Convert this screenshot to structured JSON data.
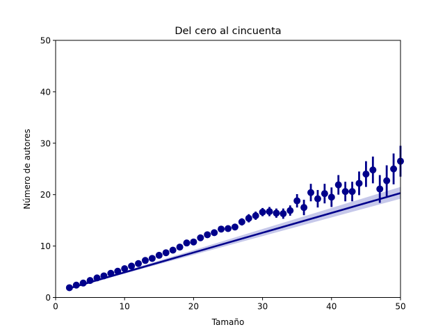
{
  "chart_data": {
    "type": "scatter",
    "title": "Del cero al cincuenta",
    "xlabel": "Tamaño",
    "ylabel": "Número de autores",
    "xlim": [
      0,
      50
    ],
    "ylim": [
      0,
      50
    ],
    "xticks": [
      "0",
      "10",
      "20",
      "30",
      "40",
      "50"
    ],
    "yticks": [
      "0",
      "10",
      "20",
      "30",
      "40",
      "50"
    ],
    "grid": false,
    "colors": {
      "points": "#00008b",
      "fit": "#00008b",
      "band": "#c6c8ea"
    },
    "series": [
      {
        "type": "scatter-errorbar",
        "x": [
          2,
          3,
          4,
          5,
          6,
          7,
          8,
          9,
          10,
          11,
          12,
          13,
          14,
          15,
          16,
          17,
          18,
          19,
          20,
          21,
          22,
          23,
          24,
          25,
          26,
          27,
          28,
          29,
          30,
          31,
          32,
          33,
          34,
          35,
          36,
          37,
          38,
          39,
          40,
          41,
          42,
          43,
          44,
          45,
          46,
          47,
          48,
          49,
          50
        ],
        "y": [
          1.9,
          2.4,
          2.8,
          3.3,
          3.8,
          4.2,
          4.7,
          5.1,
          5.6,
          6.1,
          6.6,
          7.2,
          7.6,
          8.2,
          8.7,
          9.2,
          9.8,
          10.6,
          10.8,
          11.6,
          12.2,
          12.6,
          13.3,
          13.4,
          13.7,
          14.7,
          15.4,
          15.9,
          16.6,
          16.7,
          16.4,
          16.3,
          16.9,
          18.8,
          17.5,
          20.4,
          19.2,
          20.2,
          19.5,
          21.9,
          20.6,
          20.6,
          22.2,
          24.0,
          24.8,
          21.1,
          22.7,
          25.0,
          26.5
        ],
        "yerr_low": [
          1.8,
          2.3,
          2.7,
          3.2,
          3.7,
          4.1,
          4.6,
          5.0,
          5.4,
          5.9,
          6.4,
          7.0,
          7.4,
          8.0,
          8.5,
          9.0,
          9.5,
          10.3,
          10.5,
          11.3,
          11.8,
          12.2,
          12.9,
          12.9,
          13.2,
          14.0,
          14.6,
          15.1,
          15.8,
          15.8,
          15.5,
          15.3,
          15.9,
          17.5,
          16.0,
          18.7,
          17.5,
          18.3,
          17.6,
          20.0,
          18.7,
          18.7,
          19.9,
          21.5,
          22.2,
          18.4,
          19.7,
          22.0,
          23.5
        ],
        "yerr_high": [
          2.0,
          2.5,
          2.9,
          3.4,
          3.9,
          4.3,
          4.8,
          5.2,
          5.8,
          6.3,
          6.8,
          7.4,
          7.8,
          8.4,
          8.9,
          9.4,
          10.1,
          10.9,
          11.1,
          11.9,
          12.6,
          13.0,
          13.7,
          13.9,
          14.2,
          15.4,
          16.2,
          16.7,
          17.4,
          17.6,
          17.3,
          17.3,
          17.9,
          20.1,
          19.0,
          22.1,
          20.9,
          22.1,
          21.4,
          23.8,
          22.5,
          22.5,
          24.5,
          26.5,
          27.4,
          23.8,
          25.7,
          28.0,
          29.5
        ]
      },
      {
        "type": "regression",
        "x": [
          2,
          50
        ],
        "y": [
          1.8,
          20.3
        ],
        "band_low": [
          1.75,
          19.2
        ],
        "band_high": [
          1.85,
          21.5
        ]
      }
    ]
  }
}
